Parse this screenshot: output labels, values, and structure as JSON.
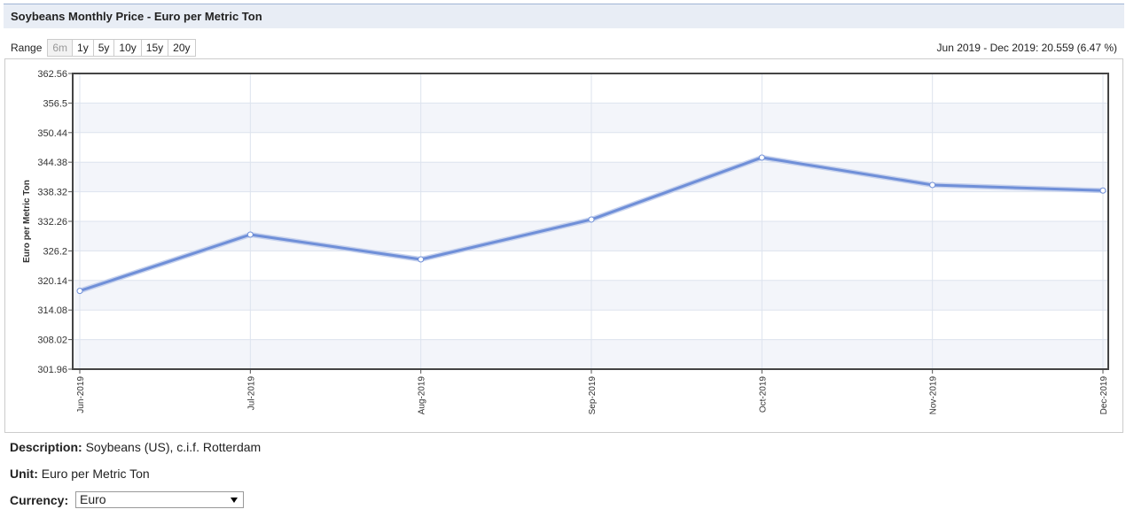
{
  "header": {
    "title": "Soybeans Monthly Price - Euro per Metric Ton"
  },
  "range": {
    "label": "Range",
    "buttons": [
      "6m",
      "1y",
      "5y",
      "10y",
      "15y",
      "20y"
    ]
  },
  "summary": "Jun 2019 - Dec 2019: 20.559 (6.47 %)",
  "chart_data": {
    "type": "line",
    "ylabel": "Euro per Metric Ton",
    "categories": [
      "Jun-2019",
      "Jul-2019",
      "Aug-2019",
      "Sep-2019",
      "Oct-2019",
      "Nov-2019",
      "Dec-2019"
    ],
    "values": [
      318.0,
      329.54,
      324.46,
      332.63,
      345.33,
      339.71,
      338.56
    ],
    "color": "#6f8fd8",
    "ylim": [
      301.96,
      362.56
    ],
    "yticks": [
      301.96,
      308.02,
      314.08,
      320.14,
      326.2,
      332.26,
      338.32,
      344.38,
      350.44,
      356.5,
      362.56
    ],
    "grid": true
  },
  "info": {
    "description_label": "Description:",
    "description": "Soybeans (US), c.i.f. Rotterdam",
    "unit_label": "Unit:",
    "unit": "Euro per Metric Ton",
    "currency_label": "Currency:",
    "currency": "Euro"
  }
}
